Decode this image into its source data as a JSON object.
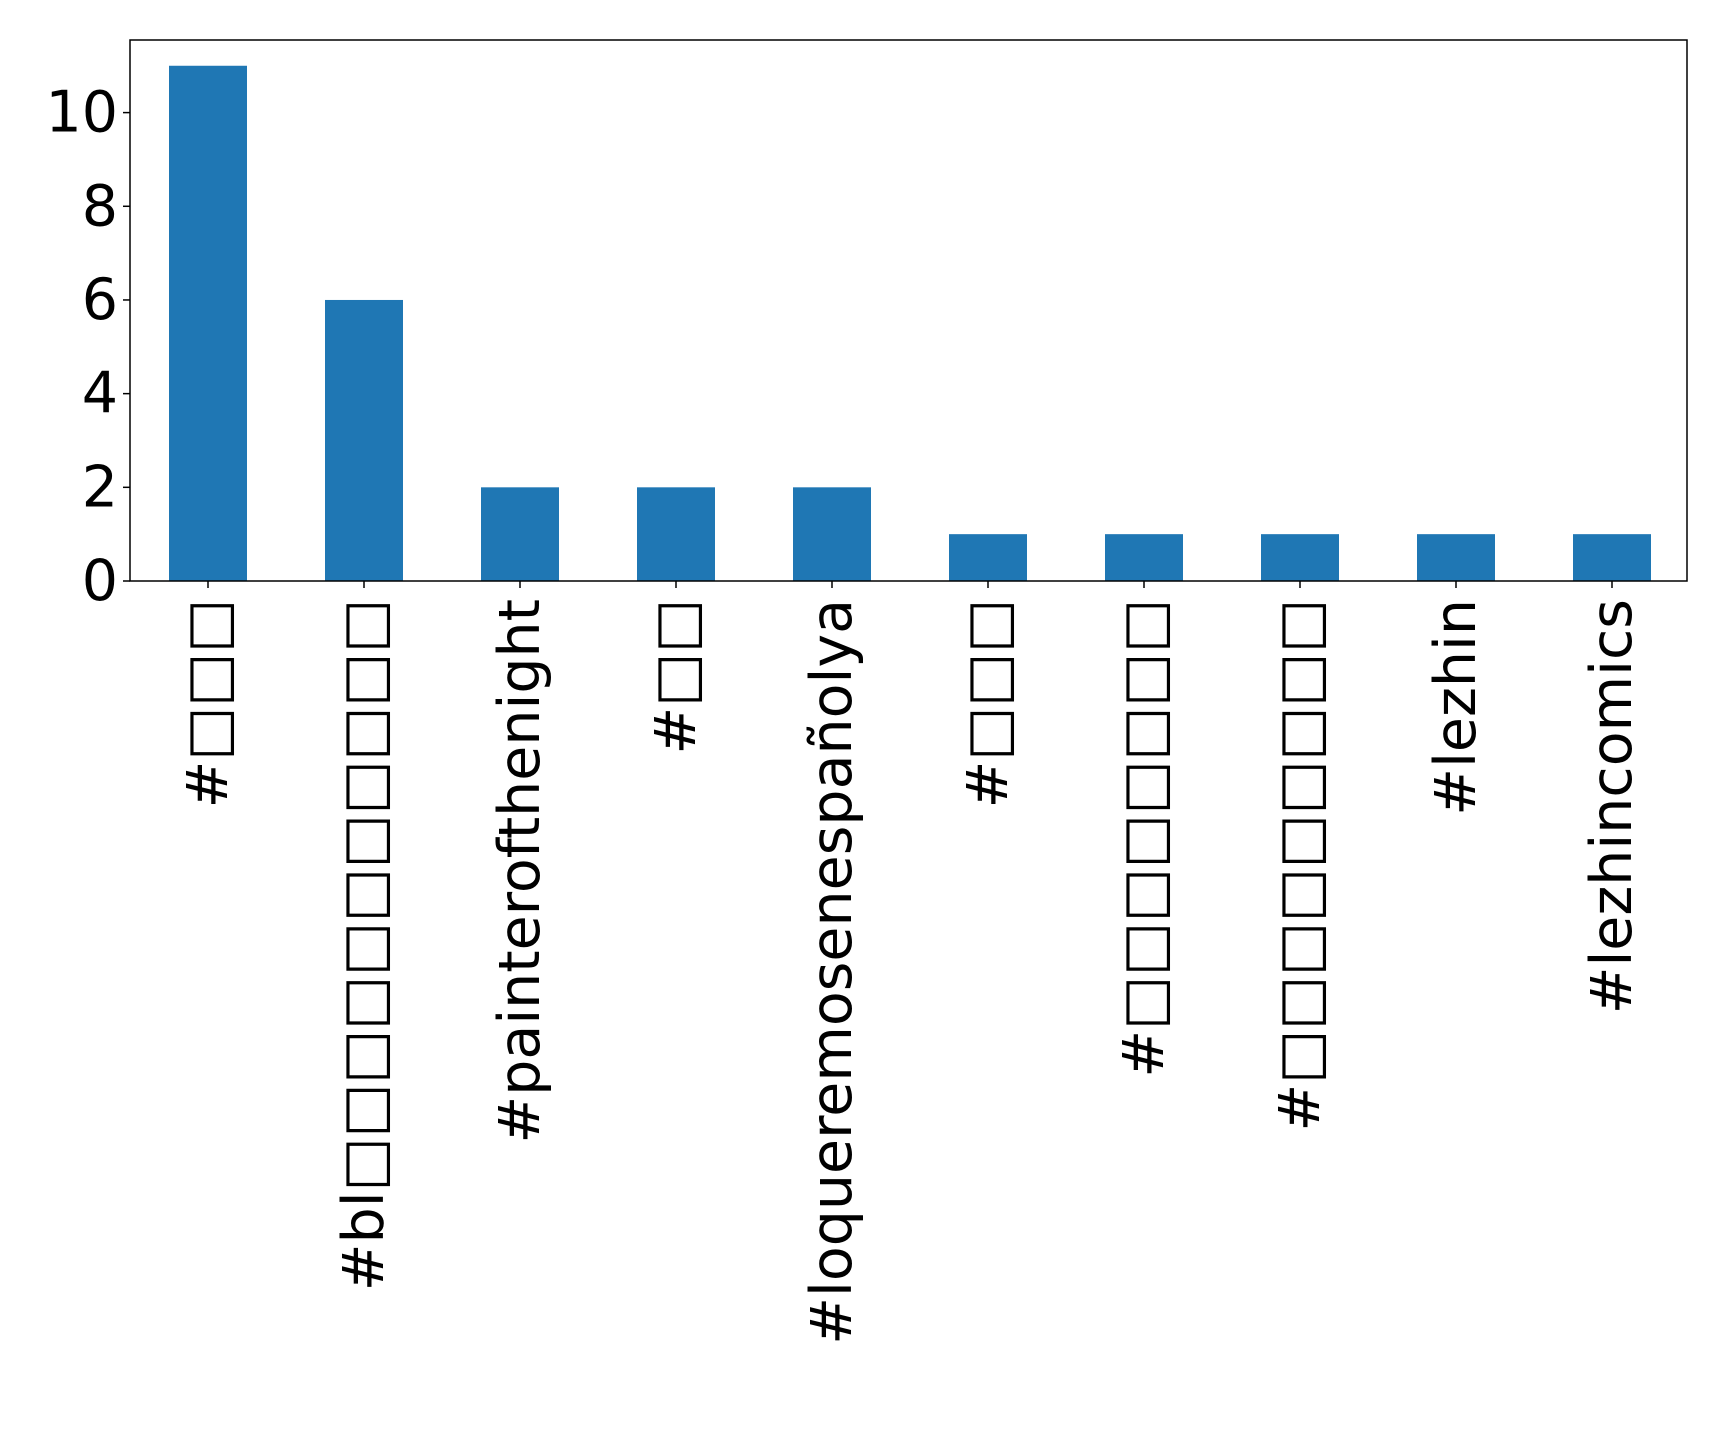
{
  "chart_data": {
    "type": "bar",
    "categories": [
      "#□□□",
      "#bl□□□□□□□□□□□",
      "#painterofthenight",
      "#□□",
      "#loqueremosenespañolya",
      "#□□□",
      "#□□□□□□□□",
      "#□□□□□□□□□",
      "#lezhin",
      "#lezhincomics"
    ],
    "values": [
      11,
      6,
      2,
      2,
      2,
      1,
      1,
      1,
      1,
      1
    ],
    "yticks": [
      "0",
      "2",
      "4",
      "6",
      "8",
      "10"
    ],
    "ylim": [
      0,
      11.55
    ],
    "bar_color": "#1f77b4",
    "grid": false
  }
}
